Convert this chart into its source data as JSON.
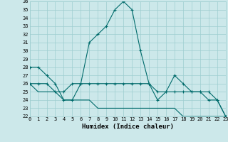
{
  "xlabel": "Humidex (Indice chaleur)",
  "bg_color": "#cce8ea",
  "grid_color": "#9ecdd0",
  "line_color": "#006b6b",
  "hours": [
    0,
    1,
    2,
    3,
    4,
    5,
    6,
    7,
    8,
    9,
    10,
    11,
    12,
    13,
    14,
    15,
    16,
    17,
    18,
    19,
    20,
    21,
    22,
    23
  ],
  "humidex": [
    28,
    28,
    27,
    26,
    24,
    24,
    26,
    31,
    32,
    33,
    35,
    36,
    35,
    30,
    26,
    24,
    25,
    27,
    26,
    25,
    25,
    24,
    24,
    22
  ],
  "line2": [
    26,
    26,
    26,
    25,
    25,
    26,
    26,
    26,
    26,
    26,
    26,
    26,
    26,
    26,
    26,
    25,
    25,
    25,
    25,
    25,
    25,
    25,
    24,
    22
  ],
  "line3": [
    26,
    25,
    25,
    25,
    24,
    24,
    24,
    24,
    23,
    23,
    23,
    23,
    23,
    23,
    23,
    23,
    23,
    23,
    22,
    22,
    22,
    22,
    22,
    22
  ],
  "xlim": [
    0,
    23
  ],
  "ylim": [
    22,
    36
  ],
  "yticks": [
    22,
    23,
    24,
    25,
    26,
    27,
    28,
    29,
    30,
    31,
    32,
    33,
    34,
    35,
    36
  ],
  "xticks": [
    0,
    1,
    2,
    3,
    4,
    5,
    6,
    7,
    8,
    9,
    10,
    11,
    12,
    13,
    14,
    15,
    16,
    17,
    18,
    19,
    20,
    21,
    22,
    23
  ],
  "tick_fontsize": 5.0,
  "xlabel_fontsize": 6.5,
  "linewidth": 0.8,
  "markersize": 3.5
}
